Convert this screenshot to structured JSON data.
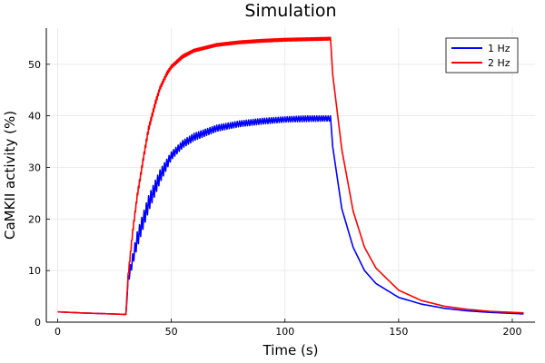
{
  "chart_data": {
    "type": "line",
    "title": "Simulation",
    "xlabel": "Time (s)",
    "ylabel": "CaMKII activity (%)",
    "xlim": [
      -5,
      210
    ],
    "ylim": [
      0,
      57
    ],
    "xticks": [
      0,
      50,
      100,
      150,
      200
    ],
    "yticks": [
      0,
      10,
      20,
      30,
      40,
      50
    ],
    "grid": true,
    "legend_position": "top-right",
    "series": [
      {
        "name": "1 Hz",
        "color": "#0000ff",
        "oscillation": {
          "freq_hz": 1,
          "start": 30,
          "end": 120
        },
        "x": [
          0,
          10,
          20,
          30,
          31,
          35,
          40,
          45,
          50,
          55,
          60,
          70,
          80,
          90,
          100,
          110,
          120,
          121,
          125,
          130,
          135,
          140,
          150,
          160,
          170,
          180,
          190,
          200,
          205
        ],
        "y": [
          2.0,
          1.8,
          1.65,
          1.5,
          9.0,
          17.5,
          24.5,
          29.5,
          33.0,
          35.2,
          36.6,
          38.2,
          39.0,
          39.5,
          39.8,
          40.0,
          40.0,
          34.0,
          22.0,
          14.5,
          10.0,
          7.5,
          4.8,
          3.5,
          2.7,
          2.2,
          1.9,
          1.7,
          1.6
        ],
        "y_low": [
          2.0,
          1.8,
          1.65,
          1.5,
          7.5,
          14.5,
          21.5,
          27.0,
          31.5,
          33.8,
          35.2,
          37.0,
          37.9,
          38.4,
          38.8,
          38.9,
          39.0,
          34.0,
          22.0,
          14.5,
          10.0,
          7.5,
          4.8,
          3.5,
          2.7,
          2.2,
          1.9,
          1.7,
          1.6
        ]
      },
      {
        "name": "2 Hz",
        "color": "#ff0000",
        "oscillation": {
          "freq_hz": 2,
          "start": 30,
          "end": 120
        },
        "x": [
          0,
          10,
          20,
          30,
          31,
          33,
          35,
          38,
          40,
          43,
          45,
          48,
          50,
          55,
          60,
          70,
          80,
          90,
          100,
          110,
          120,
          121,
          125,
          130,
          135,
          140,
          150,
          160,
          170,
          180,
          190,
          200,
          205
        ],
        "y": [
          2.0,
          1.8,
          1.65,
          1.5,
          9.5,
          18.0,
          25.0,
          33.0,
          38.0,
          43.0,
          45.7,
          48.5,
          49.8,
          51.8,
          52.9,
          54.0,
          54.5,
          54.8,
          55.0,
          55.1,
          55.2,
          48.0,
          33.5,
          21.5,
          14.5,
          10.5,
          6.2,
          4.2,
          3.1,
          2.5,
          2.1,
          1.9,
          1.8
        ],
        "y_low": [
          2.0,
          1.8,
          1.65,
          1.5,
          8.5,
          17.0,
          24.0,
          32.0,
          37.0,
          42.0,
          45.0,
          47.8,
          49.2,
          51.2,
          52.4,
          53.5,
          54.0,
          54.3,
          54.5,
          54.6,
          54.7,
          48.0,
          33.5,
          21.5,
          14.5,
          10.5,
          6.2,
          4.2,
          3.1,
          2.5,
          2.1,
          1.9,
          1.8
        ]
      }
    ]
  }
}
